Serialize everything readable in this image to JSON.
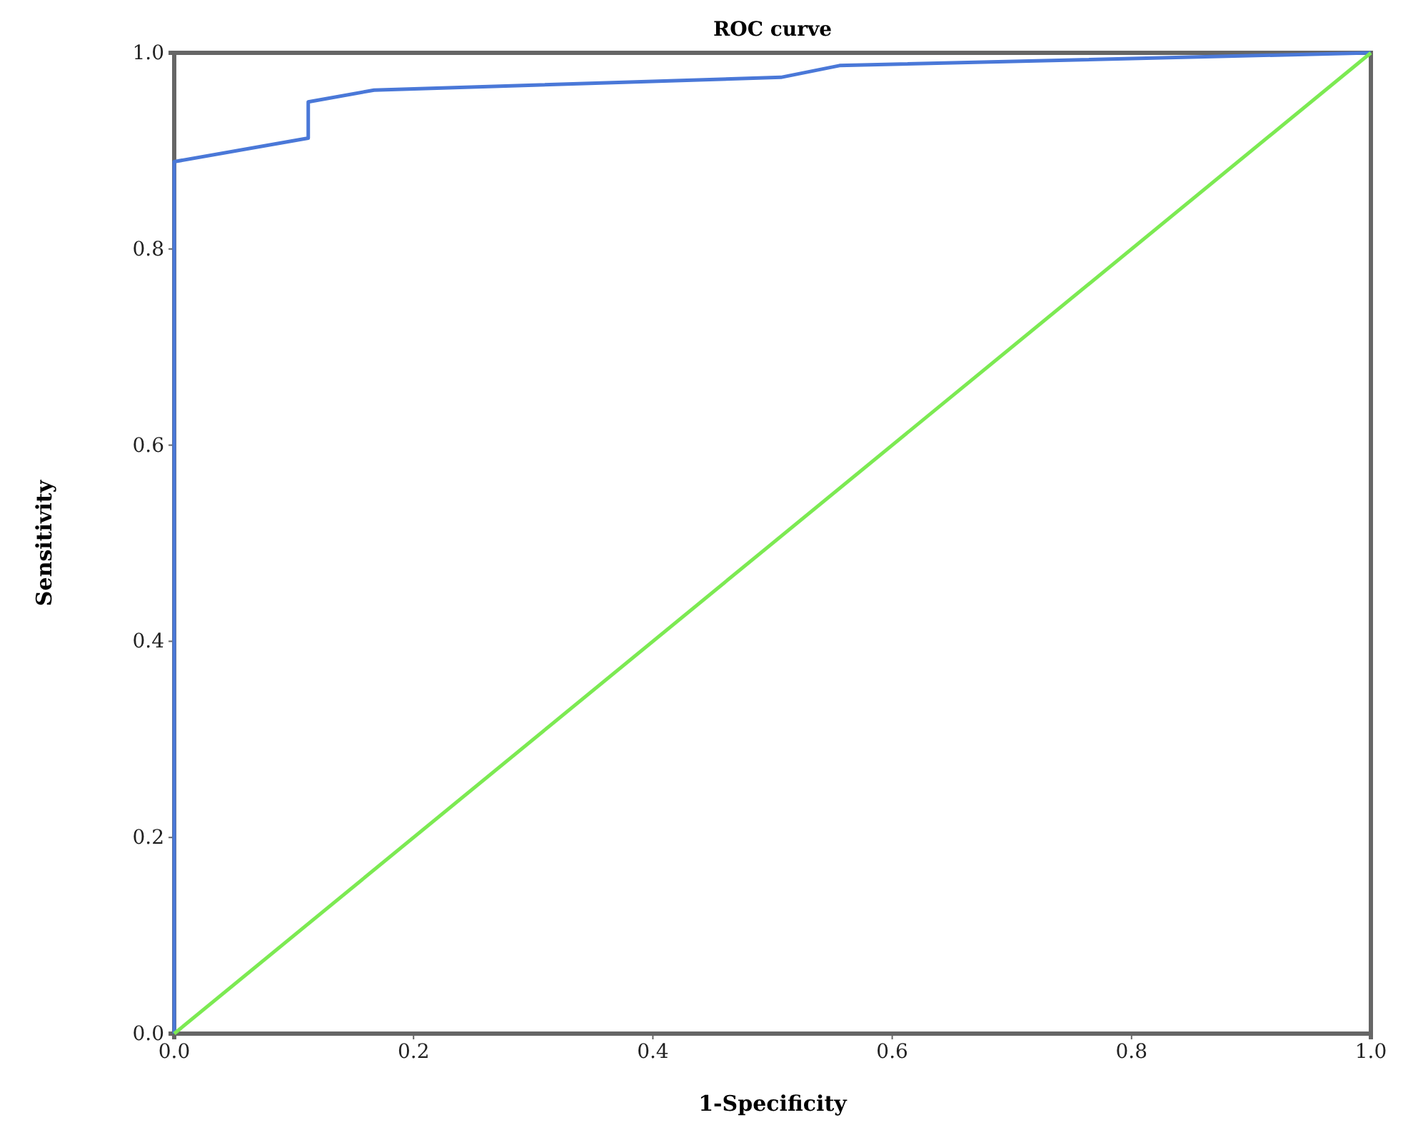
{
  "chart_data": {
    "type": "line",
    "title": "ROC curve",
    "xlabel": "1-Specificity",
    "ylabel": "Sensitivity",
    "xlim": [
      0,
      1
    ],
    "ylim": [
      0,
      1
    ],
    "xticks": [
      {
        "value": 0,
        "label": "0.0"
      },
      {
        "value": 0.2,
        "label": "0.2"
      },
      {
        "value": 0.4,
        "label": "0.4"
      },
      {
        "value": 0.6,
        "label": "0.6"
      },
      {
        "value": 0.8,
        "label": "0.8"
      },
      {
        "value": 1,
        "label": "1.0"
      }
    ],
    "yticks": [
      {
        "value": 0,
        "label": "0.0"
      },
      {
        "value": 0.2,
        "label": "0.2"
      },
      {
        "value": 0.4,
        "label": "0.4"
      },
      {
        "value": 0.6,
        "label": "0.6"
      },
      {
        "value": 0.8,
        "label": "0.8"
      },
      {
        "value": 1,
        "label": "1.0"
      }
    ],
    "grid": false,
    "marker": "none",
    "line_style": "solid",
    "series": [
      {
        "color": "#4a78d8",
        "x": [
          0,
          0,
          0.112,
          0.112,
          0.167,
          0.507,
          0.556,
          1
        ],
        "values": [
          0,
          0.889,
          0.913,
          0.95,
          0.962,
          0.975,
          0.987,
          1
        ]
      },
      {
        "color": "#7cea52",
        "x": [
          0,
          1
        ],
        "values": [
          0,
          1
        ]
      }
    ]
  }
}
